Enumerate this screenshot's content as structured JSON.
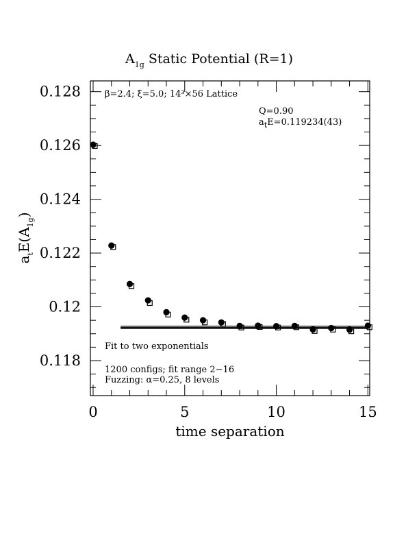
{
  "chart_data": {
    "type": "scatter",
    "title": {
      "main": "A",
      "sub": "1g",
      "rest": " Static Potential (R=1)"
    },
    "xlabel": "time separation",
    "ylabel": {
      "a": "a",
      "a_sub": "t",
      "mid": "E(A",
      "mid_sub": "1g",
      "end": ")"
    },
    "xlim": [
      -0.15,
      15.1
    ],
    "ylim": [
      0.1167,
      0.1284
    ],
    "xticks": [
      0,
      5,
      10,
      15
    ],
    "xtick_labels": [
      "0",
      "5",
      "10",
      "15"
    ],
    "yticks": [
      0.118,
      0.12,
      0.122,
      0.124,
      0.126,
      0.128
    ],
    "ytick_labels": [
      "0.118",
      "0.12",
      "0.122",
      "0.124",
      "0.126",
      "0.128"
    ],
    "series": [
      {
        "marker": "filled-circle",
        "x": [
          0,
          1,
          2,
          3,
          4,
          5,
          6,
          7,
          8,
          9,
          10,
          11,
          12,
          13,
          14,
          15
        ],
        "values": [
          0.12603,
          0.12228,
          0.12085,
          0.12024,
          0.1198,
          0.1196,
          0.1195,
          0.11942,
          0.11929,
          0.1193,
          0.11928,
          0.11929,
          0.11916,
          0.11921,
          0.11915,
          0.1193
        ]
      },
      {
        "marker": "open-square",
        "x": [
          0,
          1,
          2,
          3,
          4,
          5,
          6,
          7,
          8,
          9,
          10,
          11,
          12,
          13,
          14,
          15
        ],
        "values": [
          0.12602,
          0.12226,
          0.12081,
          0.12018,
          0.11975,
          0.11956,
          0.11946,
          0.1194,
          0.11927,
          0.11929,
          0.11927,
          0.11928,
          0.11914,
          0.11919,
          0.11913,
          0.11928
        ]
      }
    ],
    "fit": {
      "x_range": [
        1.5,
        15
      ],
      "center": 0.119234,
      "error": 4.3e-05
    },
    "annotations": {
      "lattice": "β=2.4; ξ=5.0; 14³×56 Lattice",
      "q": "Q=0.90",
      "energy": {
        "a": "a",
        "sub": "t",
        "rest": "E=0.119234(43)"
      },
      "fit_label": "Fit to two exponentials",
      "configs": "1200 configs; fit range 2−16",
      "fuzzing": "Fuzzing: α=0.25, 8 levels"
    }
  }
}
